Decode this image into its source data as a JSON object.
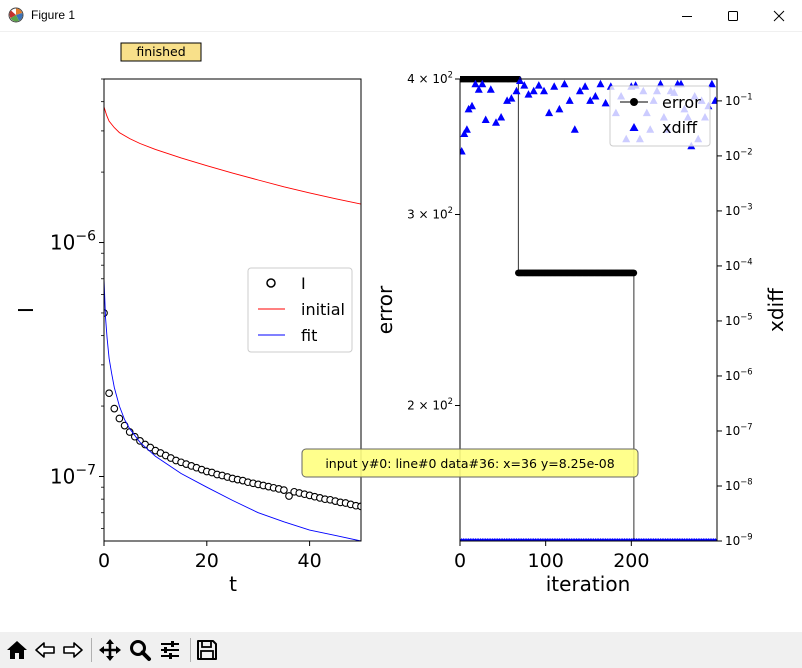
{
  "window": {
    "title": "Figure 1"
  },
  "status": {
    "label": "finished"
  },
  "tooltip": {
    "text": "input y#0: line#0 data#36: x=36 y=8.25e-08"
  },
  "toolbar": {
    "items": [
      "home",
      "back",
      "forward",
      "pan",
      "zoom",
      "configure-subplots",
      "save"
    ]
  },
  "chart_data": [
    {
      "type": "line",
      "xlabel": "t",
      "ylabel": "I",
      "xlim": [
        0,
        50
      ],
      "ylim": [
        5.3e-08,
        5e-06
      ],
      "yscale": "log",
      "x_ticks": [
        0,
        20,
        40
      ],
      "y_tick_labels": [
        {
          "value": 1e-06,
          "base": "10",
          "exp": "−6"
        },
        {
          "value": 1e-07,
          "base": "10",
          "exp": "−7"
        }
      ],
      "legend": {
        "placement": "center-right",
        "entries": [
          "I",
          "initial",
          "fit"
        ]
      },
      "series": [
        {
          "name": "I",
          "style": "open-circles",
          "color": "#000000",
          "x": [
            0,
            1,
            2,
            3,
            4,
            5,
            6,
            7,
            8,
            9,
            10,
            11,
            12,
            13,
            14,
            15,
            16,
            17,
            18,
            19,
            20,
            21,
            22,
            23,
            24,
            25,
            26,
            27,
            28,
            29,
            30,
            31,
            32,
            33,
            34,
            35,
            36,
            37,
            38,
            39,
            40,
            41,
            42,
            43,
            44,
            45,
            46,
            47,
            48,
            49,
            50
          ],
          "y": [
            5e-07,
            2.27e-07,
            1.95e-07,
            1.77e-07,
            1.65e-07,
            1.55e-07,
            1.48e-07,
            1.42e-07,
            1.37e-07,
            1.33e-07,
            1.29e-07,
            1.26e-07,
            1.23e-07,
            1.2e-07,
            1.17e-07,
            1.15e-07,
            1.13e-07,
            1.11e-07,
            1.09e-07,
            1.07e-07,
            1.05e-07,
            1.04e-07,
            1.02e-07,
            1.01e-07,
            9.95e-08,
            9.8e-08,
            9.7e-08,
            9.6e-08,
            9.45e-08,
            9.35e-08,
            9.25e-08,
            9.15e-08,
            9.05e-08,
            8.95e-08,
            8.85e-08,
            8.75e-08,
            8.25e-08,
            8.6e-08,
            8.5e-08,
            8.4e-08,
            8.3e-08,
            8.2e-08,
            8.1e-08,
            8e-08,
            7.95e-08,
            7.85e-08,
            7.75e-08,
            7.7e-08,
            7.6e-08,
            7.5e-08,
            7.45e-08
          ]
        },
        {
          "name": "initial",
          "style": "line",
          "color": "#ff0000",
          "x": [
            0,
            0.5,
            1,
            2,
            3,
            5,
            7,
            10,
            15,
            20,
            25,
            30,
            35,
            40,
            45,
            50
          ],
          "y": [
            3.8e-06,
            3.5e-06,
            3.3e-06,
            3.1e-06,
            2.95e-06,
            2.78e-06,
            2.65e-06,
            2.5e-06,
            2.3e-06,
            2.13e-06,
            1.98e-06,
            1.85e-06,
            1.73e-06,
            1.63e-06,
            1.54e-06,
            1.46e-06
          ]
        },
        {
          "name": "fit",
          "style": "line",
          "color": "#0000ff",
          "x": [
            0,
            0.3,
            0.6,
            1,
            1.5,
            2,
            3,
            4,
            5,
            7,
            10,
            15,
            20,
            25,
            30,
            35,
            40,
            45,
            50
          ],
          "y": [
            7e-07,
            4.8e-07,
            3.9e-07,
            3.2e-07,
            2.75e-07,
            2.4e-07,
            2e-07,
            1.75e-07,
            1.6e-07,
            1.4e-07,
            1.22e-07,
            1.03e-07,
            9e-08,
            7.9e-08,
            7e-08,
            6.4e-08,
            5.9e-08,
            5.6e-08,
            5.3e-08
          ]
        }
      ]
    },
    {
      "type": "line",
      "xlabel": "iteration",
      "ylabel": "error",
      "y2label": "xdiff",
      "xlim": [
        0,
        300
      ],
      "ylim": [
        150,
        400
      ],
      "yscale": "log",
      "x_ticks": [
        0,
        100,
        200
      ],
      "y_tick_labels": [
        {
          "value": 400,
          "base": "4 × 10",
          "exp": "2"
        },
        {
          "value": 300,
          "base": "3 × 10",
          "exp": "2"
        },
        {
          "value": 200,
          "base": "2 × 10",
          "exp": "2"
        }
      ],
      "y2lim": [
        1e-09,
        0.25
      ],
      "y2scale": "log",
      "y2_tick_labels": [
        {
          "value": 0.1,
          "exp": "−1"
        },
        {
          "value": 0.01,
          "exp": "−2"
        },
        {
          "value": 0.001,
          "exp": "−3"
        },
        {
          "value": 0.0001,
          "exp": "−4"
        },
        {
          "value": 1e-05,
          "exp": "−5"
        },
        {
          "value": 1e-06,
          "exp": "−6"
        },
        {
          "value": 1e-07,
          "exp": "−7"
        },
        {
          "value": 1e-08,
          "exp": "−8"
        },
        {
          "value": 1e-09,
          "exp": "−9"
        }
      ],
      "legend": {
        "placement": "upper-right",
        "entries": [
          "error",
          "xdiff"
        ]
      },
      "series": [
        {
          "name": "error",
          "style": "filled-circles",
          "color": "#000000",
          "segments": [
            {
              "x_start": 0,
              "x_end": 68,
              "y": 400
            },
            {
              "x_start": 68,
              "x_end": 203,
              "y": 265
            },
            {
              "x_start": 203,
              "x_end": 300,
              "y": 150
            }
          ]
        },
        {
          "name": "xdiff",
          "style": "triangles",
          "color": "#0000ff",
          "x": [
            2,
            5,
            8,
            10,
            14,
            18,
            22,
            26,
            30,
            36,
            42,
            48,
            55,
            60,
            66,
            70,
            75,
            80,
            86,
            92,
            98,
            104,
            110,
            116,
            122,
            128,
            134,
            140,
            146,
            152,
            158,
            164,
            170,
            176,
            182,
            188,
            194,
            200,
            205,
            210,
            214,
            218,
            222,
            226,
            230,
            234,
            238,
            242,
            246,
            250,
            254,
            258,
            262,
            266,
            270,
            274,
            278,
            282,
            286,
            290,
            294,
            298
          ],
          "y": [
            0.012,
            0.025,
            0.03,
            0.07,
            0.08,
            0.2,
            0.16,
            0.2,
            0.045,
            0.16,
            0.04,
            0.05,
            0.1,
            0.11,
            0.15,
            0.23,
            0.19,
            0.13,
            0.15,
            0.19,
            0.15,
            0.06,
            0.18,
            0.07,
            0.2,
            0.1,
            0.03,
            0.15,
            0.18,
            0.1,
            0.12,
            0.2,
            0.09,
            0.18,
            0.06,
            0.12,
            0.02,
            0.18,
            0.19,
            0.02,
            0.15,
            0.06,
            0.03,
            0.1,
            0.15,
            0.2,
            0.05,
            0.03,
            0.15,
            0.14,
            0.2,
            0.2,
            0.07,
            0.05,
            0.015,
            0.12,
            0.02,
            0.1,
            0.05,
            0.08,
            0.2,
            0.1
          ]
        },
        {
          "name": "xdiff-floor",
          "style": "small-triangles",
          "color": "#0000ff",
          "x_range": [
            0,
            300
          ],
          "y": 1e-09
        }
      ]
    }
  ]
}
